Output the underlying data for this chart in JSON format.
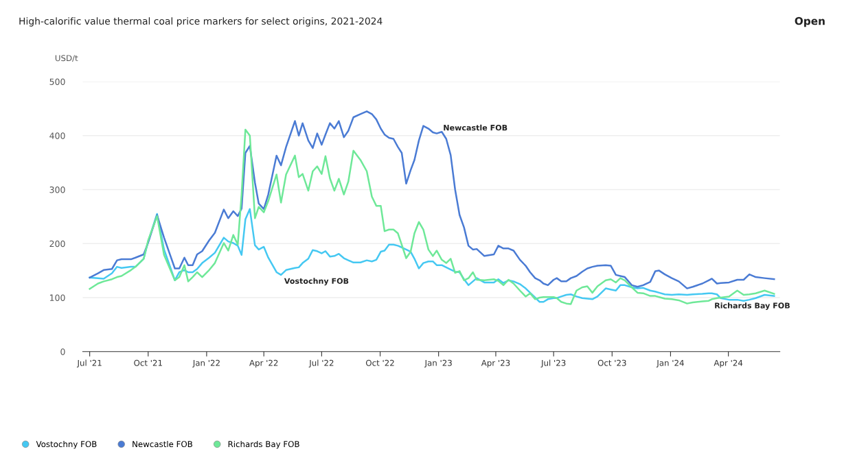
{
  "chart_data": {
    "type": "line",
    "title": "High-calorific value thermal coal price markers for select origins, 2021-2024",
    "ylabel": "USD/t",
    "x": [
      "2021-07-01",
      "2021-07-14",
      "2021-07-23",
      "2021-08-05",
      "2021-08-13",
      "2021-08-20",
      "2021-09-04",
      "2021-09-11",
      "2021-09-24",
      "2021-10-01",
      "2021-10-15",
      "2021-10-26",
      "2021-11-12",
      "2021-11-19",
      "2021-11-27",
      "2021-12-03",
      "2021-12-10",
      "2021-12-17",
      "2021-12-25",
      "2022-01-05",
      "2022-01-14",
      "2022-01-28",
      "2022-02-04",
      "2022-02-12",
      "2022-02-19",
      "2022-02-25",
      "2022-03-03",
      "2022-03-10",
      "2022-03-18",
      "2022-03-24",
      "2022-04-01",
      "2022-04-08",
      "2022-04-21",
      "2022-04-28",
      "2022-05-06",
      "2022-05-20",
      "2022-05-26",
      "2022-06-01",
      "2022-06-10",
      "2022-06-17",
      "2022-06-24",
      "2022-07-01",
      "2022-07-07",
      "2022-07-14",
      "2022-07-21",
      "2022-07-28",
      "2022-08-05",
      "2022-08-12",
      "2022-08-20",
      "2022-08-31",
      "2022-09-10",
      "2022-09-18",
      "2022-09-25",
      "2022-10-02",
      "2022-10-08",
      "2022-10-15",
      "2022-10-22",
      "2022-10-29",
      "2022-11-04",
      "2022-11-11",
      "2022-11-18",
      "2022-11-24",
      "2022-12-01",
      "2022-12-08",
      "2022-12-16",
      "2022-12-23",
      "2022-12-29",
      "2023-01-06",
      "2023-01-13",
      "2023-01-20",
      "2023-01-27",
      "2023-02-03",
      "2023-02-10",
      "2023-02-17",
      "2023-02-24",
      "2023-03-02",
      "2023-03-14",
      "2023-03-29",
      "2023-04-05",
      "2023-04-13",
      "2023-04-21",
      "2023-04-29",
      "2023-05-09",
      "2023-05-18",
      "2023-05-25",
      "2023-06-02",
      "2023-06-09",
      "2023-06-15",
      "2023-06-22",
      "2023-07-01",
      "2023-07-06",
      "2023-07-13",
      "2023-07-21",
      "2023-07-28",
      "2023-08-06",
      "2023-08-15",
      "2023-08-23",
      "2023-08-31",
      "2023-09-08",
      "2023-09-21",
      "2023-09-29",
      "2023-10-07",
      "2023-10-14",
      "2023-10-21",
      "2023-11-01",
      "2023-11-10",
      "2023-11-19",
      "2023-11-30",
      "2023-12-08",
      "2023-12-14",
      "2023-12-23",
      "2024-01-03",
      "2024-01-14",
      "2024-01-27",
      "2024-02-05",
      "2024-02-20",
      "2024-03-01",
      "2024-03-06",
      "2024-03-14",
      "2024-03-20",
      "2024-04-02",
      "2024-04-15",
      "2024-04-25",
      "2024-05-04",
      "2024-05-14",
      "2024-05-28",
      "2024-06-12"
    ],
    "series": [
      {
        "name": "Vostochny FOB",
        "color": "#45c8f2",
        "values": [
          137,
          136,
          135,
          145,
          157,
          155,
          157,
          157,
          172,
          204,
          255,
          189,
          132,
          147,
          151,
          147,
          147,
          153,
          164,
          174,
          183,
          211,
          204,
          201,
          196,
          179,
          245,
          264,
          197,
          189,
          194,
          174,
          147,
          142,
          151,
          155,
          156,
          164,
          172,
          188,
          186,
          182,
          186,
          176,
          177,
          181,
          173,
          169,
          165,
          165,
          169,
          167,
          170,
          185,
          187,
          198,
          198,
          196,
          193,
          189,
          185,
          172,
          154,
          164,
          167,
          167,
          160,
          160,
          156,
          152,
          148,
          147,
          134,
          123,
          130,
          136,
          128,
          128,
          134,
          127,
          132,
          130,
          125,
          117,
          109,
          100,
          92,
          92,
          97,
          99,
          99,
          102,
          105,
          106,
          102,
          99,
          98,
          97,
          102,
          117,
          115,
          113,
          123,
          123,
          119,
          117,
          118,
          113,
          111,
          109,
          106,
          105,
          106,
          105,
          106,
          107,
          108,
          108,
          106,
          99,
          96,
          96,
          94,
          96,
          99,
          105,
          103
        ]
      },
      {
        "name": "Newcastle FOB",
        "color": "#4a7bd4",
        "values": [
          137,
          145,
          151,
          153,
          169,
          171,
          171,
          174,
          180,
          202,
          253,
          211,
          154,
          154,
          174,
          160,
          160,
          180,
          186,
          206,
          220,
          263,
          247,
          260,
          251,
          265,
          368,
          381,
          313,
          274,
          264,
          291,
          363,
          345,
          379,
          427,
          400,
          423,
          391,
          377,
          404,
          383,
          402,
          423,
          413,
          427,
          397,
          409,
          434,
          440,
          445,
          440,
          430,
          413,
          402,
          396,
          394,
          379,
          368,
          311,
          336,
          355,
          391,
          418,
          413,
          406,
          404,
          407,
          394,
          364,
          300,
          253,
          230,
          196,
          189,
          190,
          177,
          180,
          196,
          191,
          191,
          187,
          170,
          159,
          147,
          136,
          132,
          126,
          123,
          133,
          136,
          130,
          130,
          136,
          140,
          148,
          154,
          157,
          159,
          160,
          159,
          142,
          140,
          138,
          123,
          120,
          123,
          129,
          149,
          150,
          143,
          136,
          130,
          117,
          120,
          126,
          132,
          135,
          126,
          127,
          128,
          133,
          133,
          143,
          138,
          136,
          134
        ]
      },
      {
        "name": "Richards Bay FOB",
        "color": "#6ee898",
        "values": [
          116,
          126,
          130,
          134,
          138,
          140,
          151,
          157,
          172,
          206,
          251,
          179,
          132,
          138,
          160,
          130,
          138,
          147,
          138,
          151,
          164,
          201,
          187,
          216,
          198,
          291,
          411,
          400,
          247,
          268,
          258,
          279,
          328,
          276,
          328,
          363,
          323,
          329,
          298,
          334,
          343,
          329,
          362,
          321,
          298,
          320,
          291,
          315,
          372,
          355,
          334,
          287,
          270,
          270,
          223,
          226,
          226,
          219,
          198,
          173,
          185,
          219,
          240,
          226,
          189,
          177,
          187,
          170,
          164,
          172,
          146,
          149,
          132,
          136,
          147,
          133,
          132,
          134,
          131,
          123,
          133,
          126,
          113,
          102,
          108,
          97,
          100,
          101,
          101,
          101,
          99,
          92,
          89,
          88,
          113,
          119,
          121,
          109,
          121,
          132,
          134,
          128,
          136,
          132,
          119,
          109,
          108,
          103,
          103,
          101,
          98,
          97,
          95,
          89,
          91,
          93,
          94,
          97,
          99,
          100,
          102,
          113,
          105,
          106,
          108,
          113,
          107
        ]
      }
    ],
    "xlim": [
      "2021-06-20",
      "2024-06-21"
    ],
    "xticks": [
      {
        "value": "2021-07-01",
        "label": "Jul '21"
      },
      {
        "value": "2021-10-01",
        "label": "Oct '21"
      },
      {
        "value": "2022-01-01",
        "label": "Jan '22"
      },
      {
        "value": "2022-04-01",
        "label": "Apr '22"
      },
      {
        "value": "2022-07-01",
        "label": "Jul '22"
      },
      {
        "value": "2022-10-01",
        "label": "Oct '22"
      },
      {
        "value": "2023-01-01",
        "label": "Jan '23"
      },
      {
        "value": "2023-04-01",
        "label": "Apr '23"
      },
      {
        "value": "2023-07-01",
        "label": "Jul '23"
      },
      {
        "value": "2023-10-01",
        "label": "Oct '23"
      },
      {
        "value": "2024-01-01",
        "label": "Jan '24"
      },
      {
        "value": "2024-04-01",
        "label": "Apr '24"
      }
    ],
    "ylim": [
      0,
      500
    ],
    "yticks": [
      0,
      100,
      200,
      300,
      400,
      500
    ],
    "grid": "y",
    "legend": "bottom",
    "marker": "none",
    "line_style": "solid",
    "annotations": [
      "Open"
    ]
  }
}
